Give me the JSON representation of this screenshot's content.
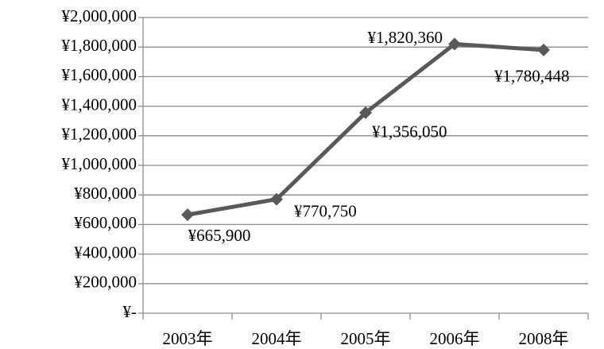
{
  "chart_data": {
    "type": "line",
    "categories": [
      "2003年",
      "2004年",
      "2005年",
      "2006年",
      "2008年"
    ],
    "values": [
      665900,
      770750,
      1356050,
      1820360,
      1780448
    ],
    "value_labels": [
      "¥665,900",
      "¥770,750",
      "¥1,356,050",
      "¥1,820,360",
      "¥1,780,448"
    ],
    "color": "#595959",
    "ylim": [
      0,
      2000000
    ],
    "yticks": [
      {
        "value": 0,
        "label": "¥-"
      },
      {
        "value": 200000,
        "label": "¥200,000"
      },
      {
        "value": 400000,
        "label": "¥400,000"
      },
      {
        "value": 600000,
        "label": "¥600,000"
      },
      {
        "value": 800000,
        "label": "¥800,000"
      },
      {
        "value": 1000000,
        "label": "¥1,000,000"
      },
      {
        "value": 1200000,
        "label": "¥1,200,000"
      },
      {
        "value": 1400000,
        "label": "¥1,400,000"
      },
      {
        "value": 1600000,
        "label": "¥1,600,000"
      },
      {
        "value": 1800000,
        "label": "¥1,800,000"
      },
      {
        "value": 2000000,
        "label": "¥2,000,000"
      }
    ],
    "grid": true
  }
}
